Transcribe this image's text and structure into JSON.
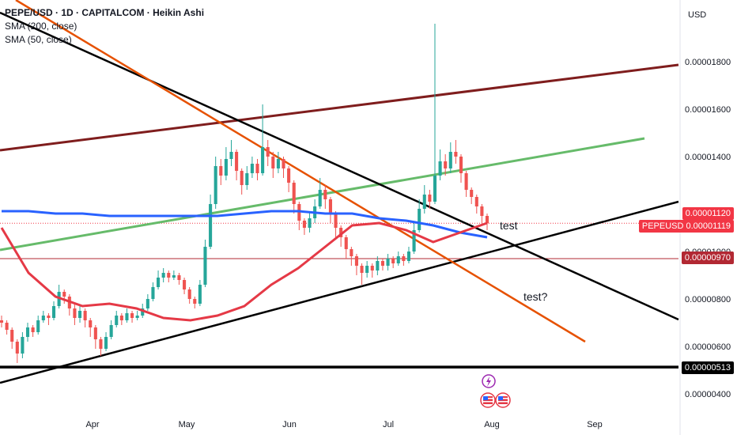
{
  "legend": {
    "title": "PEPE/USD · 1D · CAPITALCOM · Heikin Ashi",
    "sma200": "SMA (200, close)",
    "sma50": "SMA (50, close)"
  },
  "currency": "USD",
  "annotations": {
    "test1": "test",
    "test2": "test?"
  },
  "price_tags": [
    {
      "label": "0.00001120",
      "bg": "#f23645"
    },
    {
      "label": "PEPEUSD 0.00001119",
      "bg": "#f23645"
    },
    {
      "label": "0.00000970",
      "bg": "#b22833"
    },
    {
      "label": "0.00000513",
      "bg": "#000000"
    }
  ],
  "colors": {
    "up": "#26a69a",
    "down": "#ef5350",
    "sma200": "#2962ff",
    "sma50": "#e53946",
    "green_line": "#66bb6a",
    "dark_red_line": "#7f1d1d",
    "orange_line": "#e65100",
    "black_line": "#000000"
  },
  "chart_data": {
    "type": "candlestick",
    "title": "PEPE/USD · 1D · CAPITALCOM · Heikin Ashi",
    "y_axis_ticks": [
      "0.00001800",
      "0.00001600",
      "0.00001400",
      "0.00001000",
      "0.00000800",
      "0.00000600",
      "0.00000400"
    ],
    "x_axis_ticks": [
      "Apr",
      "May",
      "Jun",
      "Jul",
      "Aug",
      "Sep"
    ],
    "ylim": [
      3.8e-06,
      2e-05
    ],
    "horizontal_levels": [
      9.7e-06,
      5.13e-06
    ],
    "series": [
      {
        "name": "SMA (200, close)",
        "values": [
          1.17e-05,
          1.17e-05,
          1.16e-05,
          1.16e-05,
          1.15e-05,
          1.15e-05,
          1.15e-05,
          1.15e-05,
          1.15e-05,
          1.16e-05,
          1.17e-05,
          1.17e-05,
          1.16e-05,
          1.16e-05,
          1.14e-05,
          1.13e-05,
          1.11e-05,
          1.08e-05,
          1.06e-05
        ]
      },
      {
        "name": "SMA (50, close)",
        "values": [
          1.1e-05,
          9.1e-06,
          8.1e-06,
          7.7e-06,
          7.8e-06,
          7.6e-06,
          7.2e-06,
          7.1e-06,
          7.3e-06,
          7.7e-06,
          8.6e-06,
          9.3e-06,
          1.02e-05,
          1.11e-05,
          1.12e-05,
          1.09e-05,
          1.04e-05,
          1.08e-05,
          1.12e-05
        ]
      }
    ],
    "candles": [
      {
        "o": 7.1,
        "c": 7.0,
        "h": 7.3,
        "l": 6.8
      },
      {
        "o": 7.0,
        "c": 6.7,
        "h": 7.1,
        "l": 6.5
      },
      {
        "o": 6.7,
        "c": 6.2,
        "h": 6.8,
        "l": 5.9
      },
      {
        "o": 6.2,
        "c": 5.7,
        "h": 6.3,
        "l": 5.3
      },
      {
        "o": 5.7,
        "c": 6.4,
        "h": 6.6,
        "l": 5.5
      },
      {
        "o": 6.4,
        "c": 6.8,
        "h": 7.0,
        "l": 6.2
      },
      {
        "o": 6.8,
        "c": 6.6,
        "h": 6.9,
        "l": 6.4
      },
      {
        "o": 6.6,
        "c": 7.1,
        "h": 7.3,
        "l": 6.5
      },
      {
        "o": 7.1,
        "c": 7.3,
        "h": 7.5,
        "l": 7.0
      },
      {
        "o": 7.3,
        "c": 7.2,
        "h": 7.4,
        "l": 6.9
      },
      {
        "o": 7.2,
        "c": 7.7,
        "h": 7.9,
        "l": 7.1
      },
      {
        "o": 7.7,
        "c": 8.3,
        "h": 8.6,
        "l": 7.6
      },
      {
        "o": 8.3,
        "c": 8.1,
        "h": 8.4,
        "l": 7.8
      },
      {
        "o": 8.1,
        "c": 7.6,
        "h": 8.2,
        "l": 7.3
      },
      {
        "o": 7.6,
        "c": 7.2,
        "h": 7.8,
        "l": 6.9
      },
      {
        "o": 7.2,
        "c": 7.5,
        "h": 7.7,
        "l": 7.0
      },
      {
        "o": 7.5,
        "c": 7.1,
        "h": 7.6,
        "l": 6.8
      },
      {
        "o": 7.1,
        "c": 6.8,
        "h": 7.2,
        "l": 6.4
      },
      {
        "o": 6.8,
        "c": 6.3,
        "h": 6.9,
        "l": 5.9
      },
      {
        "o": 6.3,
        "c": 5.9,
        "h": 6.4,
        "l": 5.6
      },
      {
        "o": 5.9,
        "c": 6.4,
        "h": 6.6,
        "l": 5.8
      },
      {
        "o": 6.4,
        "c": 6.9,
        "h": 7.1,
        "l": 6.3
      },
      {
        "o": 6.9,
        "c": 7.3,
        "h": 7.5,
        "l": 6.8
      },
      {
        "o": 7.3,
        "c": 7.1,
        "h": 7.4,
        "l": 6.9
      },
      {
        "o": 7.1,
        "c": 7.4,
        "h": 7.6,
        "l": 7.0
      },
      {
        "o": 7.4,
        "c": 7.2,
        "h": 7.5,
        "l": 7.0
      },
      {
        "o": 7.2,
        "c": 7.3,
        "h": 7.5,
        "l": 7.1
      },
      {
        "o": 7.3,
        "c": 7.6,
        "h": 7.8,
        "l": 7.2
      },
      {
        "o": 7.6,
        "c": 8.0,
        "h": 8.2,
        "l": 7.5
      },
      {
        "o": 8.0,
        "c": 8.5,
        "h": 8.7,
        "l": 7.9
      },
      {
        "o": 8.5,
        "c": 8.9,
        "h": 9.2,
        "l": 8.4
      },
      {
        "o": 8.9,
        "c": 9.1,
        "h": 9.3,
        "l": 8.7
      },
      {
        "o": 9.1,
        "c": 8.9,
        "h": 9.2,
        "l": 8.7
      },
      {
        "o": 8.9,
        "c": 9.0,
        "h": 9.2,
        "l": 8.8
      },
      {
        "o": 9.0,
        "c": 8.8,
        "h": 9.1,
        "l": 8.6
      },
      {
        "o": 8.8,
        "c": 8.4,
        "h": 8.9,
        "l": 8.2
      },
      {
        "o": 8.4,
        "c": 8.0,
        "h": 8.5,
        "l": 7.8
      },
      {
        "o": 8.0,
        "c": 7.8,
        "h": 8.1,
        "l": 7.6
      },
      {
        "o": 7.8,
        "c": 8.6,
        "h": 8.8,
        "l": 7.7
      },
      {
        "o": 8.6,
        "c": 10.2,
        "h": 10.5,
        "l": 8.5
      },
      {
        "o": 10.2,
        "c": 12.0,
        "h": 12.4,
        "l": 10.1
      },
      {
        "o": 12.0,
        "c": 13.6,
        "h": 14.0,
        "l": 11.8
      },
      {
        "o": 13.6,
        "c": 13.2,
        "h": 13.9,
        "l": 12.8
      },
      {
        "o": 13.2,
        "c": 13.9,
        "h": 14.4,
        "l": 13.0
      },
      {
        "o": 13.9,
        "c": 14.2,
        "h": 14.7,
        "l": 13.6
      },
      {
        "o": 14.2,
        "c": 13.4,
        "h": 14.3,
        "l": 13.0
      },
      {
        "o": 13.4,
        "c": 12.8,
        "h": 13.5,
        "l": 12.4
      },
      {
        "o": 12.8,
        "c": 13.3,
        "h": 13.6,
        "l": 12.6
      },
      {
        "o": 13.3,
        "c": 13.7,
        "h": 14.0,
        "l": 13.1
      },
      {
        "o": 13.7,
        "c": 13.3,
        "h": 13.9,
        "l": 13.0
      },
      {
        "o": 13.3,
        "c": 14.4,
        "h": 16.2,
        "l": 13.2
      },
      {
        "o": 14.4,
        "c": 14.0,
        "h": 14.7,
        "l": 13.6
      },
      {
        "o": 14.0,
        "c": 13.5,
        "h": 14.2,
        "l": 13.1
      },
      {
        "o": 13.5,
        "c": 13.9,
        "h": 14.2,
        "l": 13.3
      },
      {
        "o": 13.9,
        "c": 13.5,
        "h": 14.0,
        "l": 13.1
      },
      {
        "o": 13.5,
        "c": 12.9,
        "h": 13.6,
        "l": 12.5
      },
      {
        "o": 12.9,
        "c": 12.0,
        "h": 13.0,
        "l": 11.6
      },
      {
        "o": 12.0,
        "c": 11.3,
        "h": 12.1,
        "l": 10.9
      },
      {
        "o": 11.3,
        "c": 11.0,
        "h": 11.4,
        "l": 10.7
      },
      {
        "o": 11.0,
        "c": 11.4,
        "h": 11.7,
        "l": 10.8
      },
      {
        "o": 11.4,
        "c": 11.9,
        "h": 12.2,
        "l": 11.2
      },
      {
        "o": 11.9,
        "c": 12.6,
        "h": 13.1,
        "l": 11.8
      },
      {
        "o": 12.6,
        "c": 12.2,
        "h": 12.8,
        "l": 11.8
      },
      {
        "o": 12.2,
        "c": 11.6,
        "h": 12.3,
        "l": 11.2
      },
      {
        "o": 11.6,
        "c": 11.0,
        "h": 11.7,
        "l": 10.6
      },
      {
        "o": 11.0,
        "c": 10.6,
        "h": 11.1,
        "l": 10.2
      },
      {
        "o": 10.6,
        "c": 10.1,
        "h": 10.7,
        "l": 9.7
      },
      {
        "o": 10.1,
        "c": 9.8,
        "h": 10.2,
        "l": 9.4
      },
      {
        "o": 9.8,
        "c": 9.4,
        "h": 9.9,
        "l": 9.0
      },
      {
        "o": 9.4,
        "c": 9.1,
        "h": 9.5,
        "l": 8.6
      },
      {
        "o": 9.1,
        "c": 9.4,
        "h": 9.6,
        "l": 8.9
      },
      {
        "o": 9.4,
        "c": 9.2,
        "h": 9.5,
        "l": 8.9
      },
      {
        "o": 9.2,
        "c": 9.6,
        "h": 9.8,
        "l": 9.0
      },
      {
        "o": 9.6,
        "c": 9.4,
        "h": 9.7,
        "l": 9.2
      },
      {
        "o": 9.4,
        "c": 9.7,
        "h": 9.9,
        "l": 9.2
      },
      {
        "o": 9.7,
        "c": 9.5,
        "h": 9.8,
        "l": 9.3
      },
      {
        "o": 9.5,
        "c": 9.8,
        "h": 10.0,
        "l": 9.4
      },
      {
        "o": 9.8,
        "c": 9.6,
        "h": 9.9,
        "l": 9.4
      },
      {
        "o": 9.6,
        "c": 10.0,
        "h": 10.2,
        "l": 9.5
      },
      {
        "o": 10.0,
        "c": 10.9,
        "h": 11.2,
        "l": 9.9
      },
      {
        "o": 10.9,
        "c": 11.8,
        "h": 12.2,
        "l": 10.8
      },
      {
        "o": 11.8,
        "c": 12.4,
        "h": 12.8,
        "l": 11.6
      },
      {
        "o": 12.4,
        "c": 12.1,
        "h": 12.6,
        "l": 11.8
      },
      {
        "o": 12.1,
        "c": 13.2,
        "h": 19.6,
        "l": 12.0
      },
      {
        "o": 13.2,
        "c": 13.8,
        "h": 14.3,
        "l": 13.0
      },
      {
        "o": 13.8,
        "c": 13.5,
        "h": 14.1,
        "l": 13.2
      },
      {
        "o": 13.5,
        "c": 14.2,
        "h": 14.6,
        "l": 13.3
      },
      {
        "o": 14.2,
        "c": 14.0,
        "h": 14.7,
        "l": 13.7
      },
      {
        "o": 14.0,
        "c": 13.3,
        "h": 14.1,
        "l": 12.9
      },
      {
        "o": 13.3,
        "c": 12.6,
        "h": 13.4,
        "l": 12.3
      },
      {
        "o": 12.6,
        "c": 12.3,
        "h": 12.7,
        "l": 12.0
      },
      {
        "o": 12.3,
        "c": 11.9,
        "h": 12.4,
        "l": 11.6
      },
      {
        "o": 11.9,
        "c": 11.5,
        "h": 12.0,
        "l": 11.2
      },
      {
        "o": 11.5,
        "c": 11.19,
        "h": 11.6,
        "l": 10.9
      }
    ]
  }
}
